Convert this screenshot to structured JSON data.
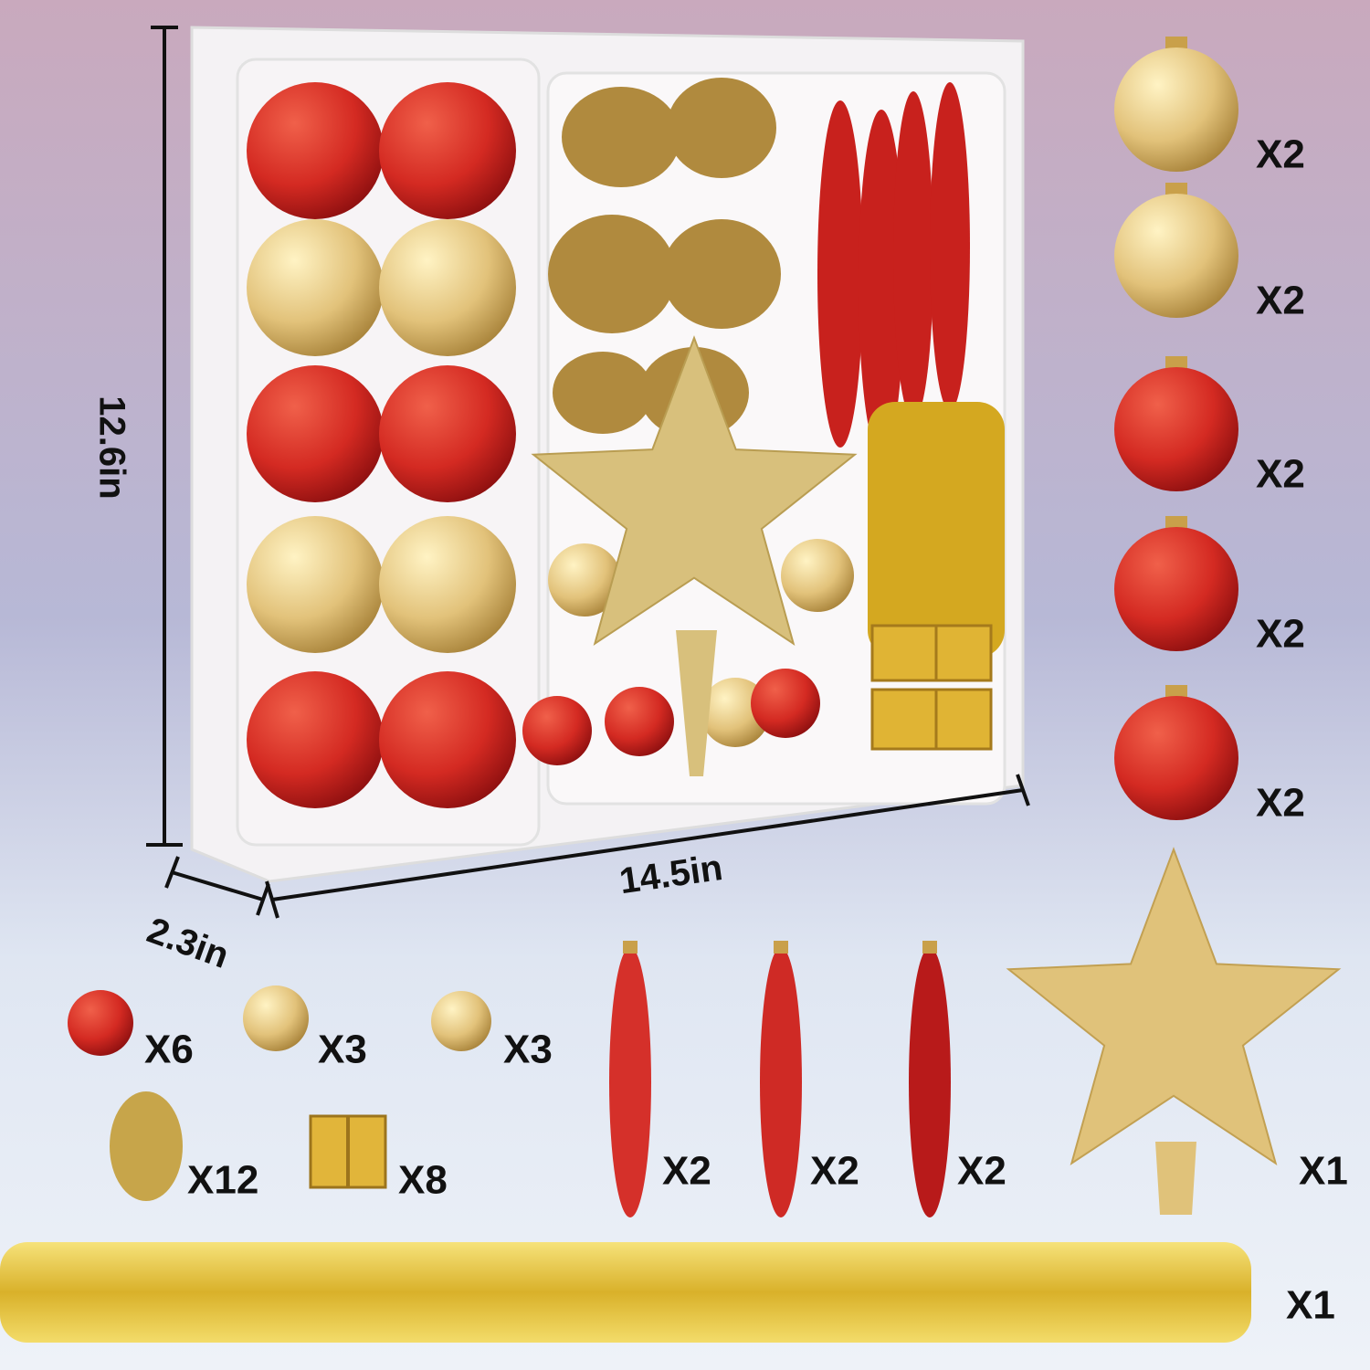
{
  "dimensions": {
    "height": "12.6in",
    "width": "14.5in",
    "depth": "2.3in"
  },
  "counts": {
    "right_column": [
      "X2",
      "X2",
      "X2",
      "X2",
      "X2"
    ],
    "small_items": [
      "X6",
      "X3",
      "X3",
      "X12",
      "X8"
    ],
    "finials": [
      "X2",
      "X2",
      "X2"
    ],
    "star": "X1",
    "tinsel": "X1"
  }
}
